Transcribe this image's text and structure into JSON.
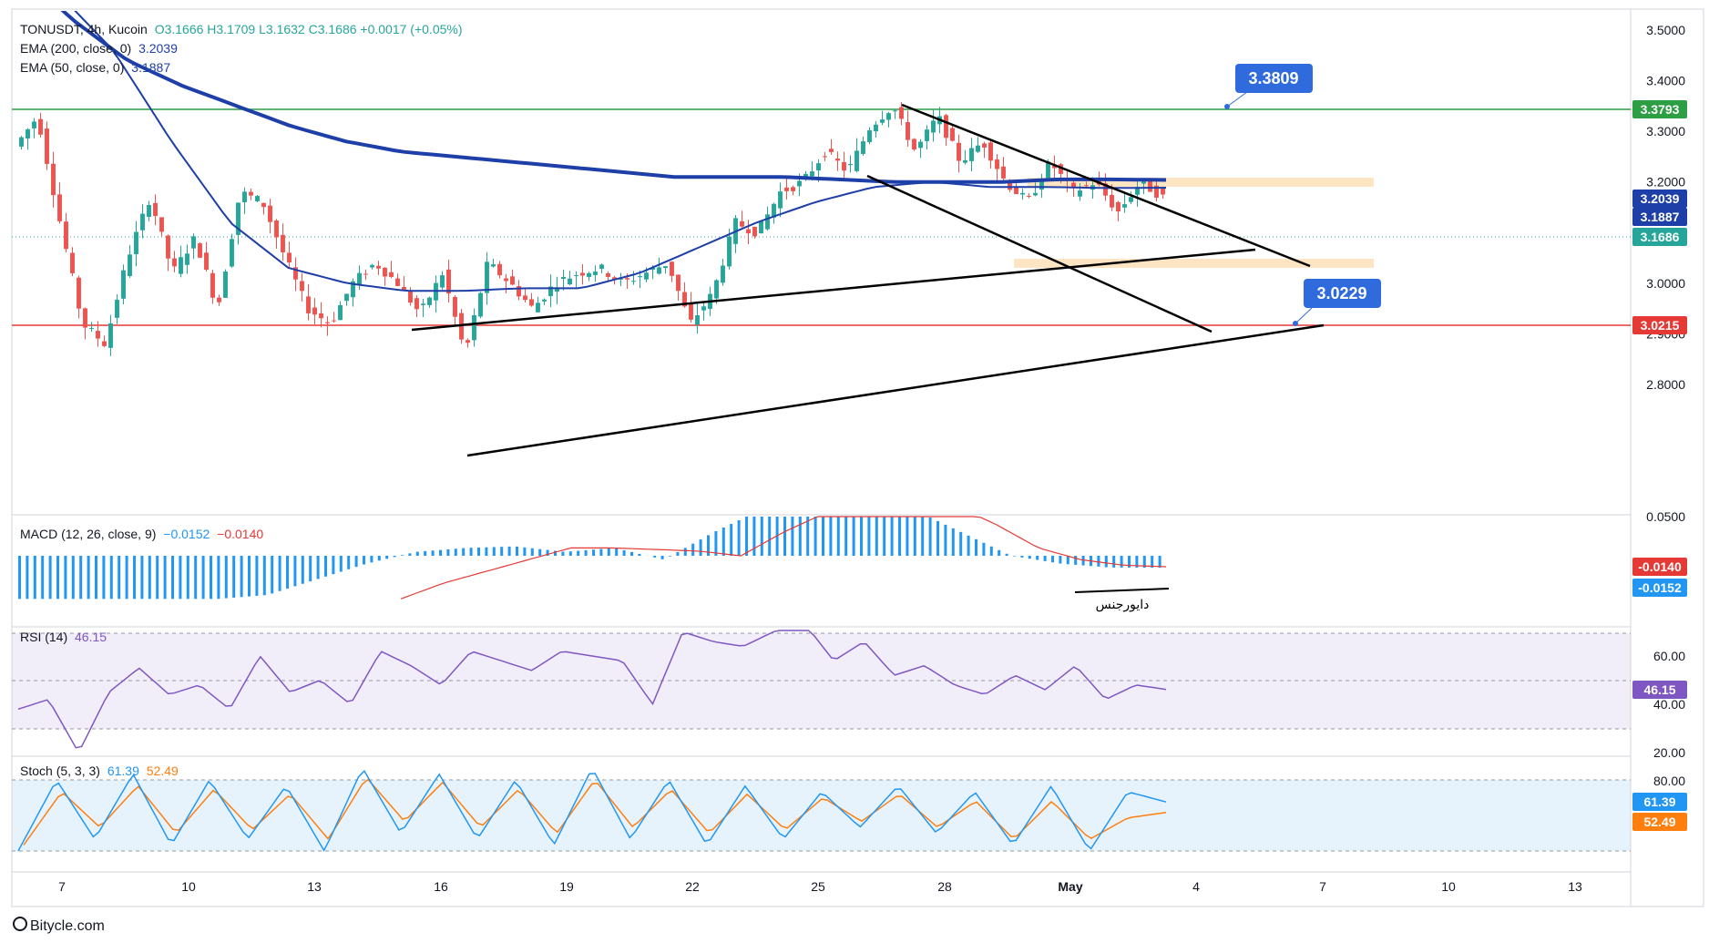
{
  "header": {
    "symbol": "TONUSDT, 4h, Kucoin",
    "ohlc": "O3.1666  H3.1709  L3.1632  C3.1686  +0.0017 (+0.05%)",
    "ema200_label": "EMA (200, close, 0)",
    "ema200_value": "3.2039",
    "ema50_label": "EMA (50, close, 0)",
    "ema50_value": "3.1887"
  },
  "panes": {
    "macd_label": "MACD (12, 26, close, 9)",
    "macd_value1": "−0.0152",
    "macd_value2": "−0.0140",
    "divergence_text": "دایورجنس",
    "rsi_label": "RSI (14)",
    "rsi_value": "46.15",
    "stoch_label": "Stoch (5, 3, 3)",
    "stoch_k": "61.39",
    "stoch_d": "52.49"
  },
  "annotations": {
    "top_callout": "3.3809",
    "bottom_callout": "3.0229"
  },
  "price_axis": {
    "ticks": [
      "3.5000",
      "3.4000",
      "3.3000",
      "3.2000",
      "3.1000",
      "3.0000",
      "2.9000",
      "2.8000"
    ],
    "badges": [
      {
        "text": "3.3793",
        "color": "#2e9e44"
      },
      {
        "text": "3.2039",
        "color": "#1e3ea8"
      },
      {
        "text": "3.1887",
        "color": "#1e3ea8"
      },
      {
        "text": "3.1686",
        "color": "#26a69a"
      },
      {
        "text": "3.0215",
        "color": "#e53935"
      }
    ]
  },
  "macd_axis": {
    "top_tick": "0.0500",
    "badges": [
      {
        "text": "-0.0140",
        "color": "#e53935"
      },
      {
        "text": "-0.0152",
        "color": "#2196f3"
      }
    ]
  },
  "rsi_axis": {
    "ticks": [
      "60.00",
      "40.00",
      "20.00"
    ],
    "badge": {
      "text": "46.15",
      "color": "#7e57c2"
    }
  },
  "stoch_axis": {
    "ticks": [
      "80.00"
    ],
    "badges": [
      {
        "text": "61.39",
        "color": "#2196f3"
      },
      {
        "text": "52.49",
        "color": "#ff7f0e"
      }
    ]
  },
  "time_axis": {
    "labels": [
      "7",
      "10",
      "13",
      "16",
      "19",
      "22",
      "25",
      "28",
      "May",
      "4",
      "7",
      "10",
      "13"
    ]
  },
  "footer": {
    "brand": "Bitycle.com"
  },
  "colors": {
    "up": "#26a69a",
    "down": "#ef5350",
    "ema200": "#1e3ea8",
    "ema50": "#1e3ea8",
    "green_line": "#2e9e44",
    "red_line": "#e53935",
    "macd_hist": "#2196f3",
    "signal": "#e53935",
    "rsi": "#7e57c2",
    "stoch_k": "#2196f3",
    "stoch_d": "#ff7f0e",
    "zone": "#fde5c4",
    "callout": "#2f6bdc"
  },
  "chart_data": {
    "type": "candlestick",
    "timeframe": "4h",
    "y_range": [
      2.74,
      3.54
    ],
    "horizontal_levels": [
      3.3793,
      3.0215
    ],
    "last_close": 3.1686,
    "ema200_last": 3.2039,
    "ema50_last": 3.1887,
    "x_dates": [
      "7",
      "10",
      "13",
      "16",
      "19",
      "22",
      "25",
      "28",
      "May",
      "4",
      "7",
      "10",
      "13"
    ],
    "close_path": [
      3.27,
      3.33,
      3.12,
      2.92,
      2.88,
      3.05,
      3.17,
      3.02,
      3.09,
      2.95,
      3.18,
      3.16,
      3.05,
      2.95,
      2.92,
      3.0,
      3.04,
      3.0,
      2.94,
      3.02,
      2.86,
      3.04,
      3.0,
      2.95,
      3.0,
      3.02,
      3.03,
      3.0,
      3.02,
      3.04,
      2.92,
      2.98,
      3.12,
      3.1,
      3.18,
      3.2,
      3.26,
      3.22,
      3.31,
      3.35,
      3.26,
      3.33,
      3.24,
      3.28,
      3.2,
      3.16,
      3.24,
      3.18,
      3.2,
      3.14,
      3.2,
      3.17
    ],
    "ema200_path": [
      3.62,
      3.52,
      3.44,
      3.39,
      3.35,
      3.31,
      3.28,
      3.26,
      3.25,
      3.24,
      3.23,
      3.22,
      3.21,
      3.21,
      3.21,
      3.205,
      3.2,
      3.2,
      3.2,
      3.205,
      3.205,
      3.2039
    ],
    "ema50_path": [
      3.58,
      3.46,
      3.28,
      3.12,
      3.03,
      3.0,
      2.985,
      2.985,
      2.99,
      2.99,
      3.02,
      3.07,
      3.12,
      3.16,
      3.19,
      3.2,
      3.19,
      3.19,
      3.188,
      3.1887
    ],
    "macd_hist_path": [
      -0.055,
      -0.055,
      -0.055,
      -0.055,
      -0.055,
      -0.05,
      -0.03,
      -0.01,
      0.005,
      0.01,
      0.012,
      0.005,
      0.01,
      -0.005,
      0.03,
      0.06,
      0.07,
      0.07,
      0.06,
      0.03,
      0.0,
      -0.01,
      -0.015,
      -0.0152
    ],
    "macd_signal_path": [
      -0.055,
      -0.035,
      -0.02,
      -0.005,
      0.01,
      0.01,
      0.008,
      0.006,
      0.0,
      0.03,
      0.055,
      0.07,
      0.075,
      0.065,
      0.04,
      0.01,
      -0.005,
      -0.012,
      -0.014
    ],
    "rsi_path": [
      38,
      42,
      20,
      45,
      55,
      44,
      48,
      38,
      60,
      45,
      50,
      40,
      62,
      56,
      48,
      62,
      58,
      54,
      62,
      60,
      58,
      40,
      70,
      66,
      64,
      70,
      74,
      58,
      66,
      52,
      56,
      48,
      44,
      52,
      46,
      56,
      42,
      48,
      46.15
    ],
    "stoch_k_path": [
      20,
      80,
      30,
      85,
      25,
      80,
      30,
      75,
      20,
      90,
      35,
      85,
      30,
      80,
      25,
      90,
      30,
      80,
      25,
      75,
      30,
      70,
      40,
      75,
      35,
      70,
      25,
      75,
      20,
      70,
      61.39
    ],
    "stoch_d_path": [
      25,
      70,
      40,
      75,
      35,
      72,
      38,
      68,
      30,
      82,
      45,
      78,
      40,
      72,
      35,
      80,
      40,
      72,
      35,
      68,
      38,
      65,
      45,
      68,
      40,
      62,
      30,
      62,
      30,
      48,
      52.49
    ]
  }
}
